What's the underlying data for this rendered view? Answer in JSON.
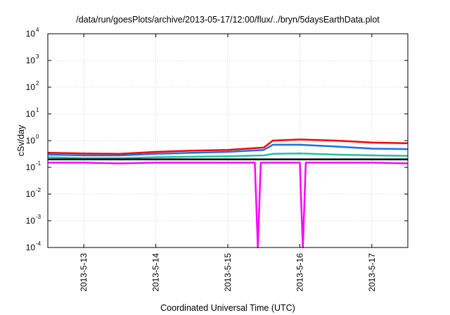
{
  "chart_data": {
    "type": "line",
    "title": "/data/run/goesPlots/archive/2013-05-17/12:00/flux/../bryn/5daysEarthData.plot",
    "xlabel": "Coordinated Universal Time (UTC)",
    "ylabel": "cSv/day",
    "yscale": "log",
    "ylim": [
      0.0001,
      10000
    ],
    "yticks": [
      {
        "value": 0.0001,
        "base": "10",
        "exp": "-4"
      },
      {
        "value": 0.001,
        "base": "10",
        "exp": "-3"
      },
      {
        "value": 0.01,
        "base": "10",
        "exp": "-2"
      },
      {
        "value": 0.1,
        "base": "10",
        "exp": "-1"
      },
      {
        "value": 1,
        "base": "10",
        "exp": "0"
      },
      {
        "value": 10,
        "base": "10",
        "exp": "1"
      },
      {
        "value": 100,
        "base": "10",
        "exp": "2"
      },
      {
        "value": 1000,
        "base": "10",
        "exp": "3"
      },
      {
        "value": 10000,
        "base": "10",
        "exp": "4"
      }
    ],
    "xlim": [
      "2013-05-12T12:00",
      "2013-05-17T12:00"
    ],
    "xticks": [
      {
        "value": "2013-05-13T00:00",
        "label": "2013-5-13"
      },
      {
        "value": "2013-05-14T00:00",
        "label": "2013-5-14"
      },
      {
        "value": "2013-05-15T00:00",
        "label": "2013-5-15"
      },
      {
        "value": "2013-05-16T00:00",
        "label": "2013-5-16"
      },
      {
        "value": "2013-05-17T00:00",
        "label": "2013-5-17"
      }
    ],
    "grid": true,
    "series": [
      {
        "color": "#ff0000",
        "points": [
          [
            "2013-05-12T12:00",
            0.35
          ],
          [
            "2013-05-13T00:00",
            0.33
          ],
          [
            "2013-05-13T12:00",
            0.32
          ],
          [
            "2013-05-14T00:00",
            0.38
          ],
          [
            "2013-05-14T12:00",
            0.42
          ],
          [
            "2013-05-15T00:00",
            0.45
          ],
          [
            "2013-05-15T12:00",
            0.55
          ],
          [
            "2013-05-15T15:00",
            1.0
          ],
          [
            "2013-05-16T00:00",
            1.1
          ],
          [
            "2013-05-16T12:00",
            1.0
          ],
          [
            "2013-05-17T00:00",
            0.85
          ],
          [
            "2013-05-17T12:00",
            0.8
          ]
        ]
      },
      {
        "color": "#1a6fe6",
        "points": [
          [
            "2013-05-12T12:00",
            0.3
          ],
          [
            "2013-05-13T00:00",
            0.28
          ],
          [
            "2013-05-13T12:00",
            0.28
          ],
          [
            "2013-05-14T00:00",
            0.32
          ],
          [
            "2013-05-14T12:00",
            0.35
          ],
          [
            "2013-05-15T00:00",
            0.38
          ],
          [
            "2013-05-15T12:00",
            0.45
          ],
          [
            "2013-05-15T15:00",
            0.7
          ],
          [
            "2013-05-16T00:00",
            0.7
          ],
          [
            "2013-05-16T12:00",
            0.6
          ],
          [
            "2013-05-17T00:00",
            0.5
          ],
          [
            "2013-05-17T12:00",
            0.48
          ]
        ]
      },
      {
        "color": "#20c0a0",
        "points": [
          [
            "2013-05-12T12:00",
            0.24
          ],
          [
            "2013-05-13T00:00",
            0.22
          ],
          [
            "2013-05-13T12:00",
            0.22
          ],
          [
            "2013-05-14T00:00",
            0.24
          ],
          [
            "2013-05-14T12:00",
            0.25
          ],
          [
            "2013-05-15T00:00",
            0.26
          ],
          [
            "2013-05-15T12:00",
            0.28
          ],
          [
            "2013-05-15T15:00",
            0.32
          ],
          [
            "2013-05-16T00:00",
            0.33
          ],
          [
            "2013-05-16T12:00",
            0.3
          ],
          [
            "2013-05-17T00:00",
            0.28
          ],
          [
            "2013-05-17T12:00",
            0.27
          ]
        ]
      },
      {
        "color": "#000000",
        "points": [
          [
            "2013-05-12T12:00",
            0.2
          ],
          [
            "2013-05-13T12:00",
            0.2
          ],
          [
            "2013-05-14T12:00",
            0.2
          ],
          [
            "2013-05-15T12:00",
            0.2
          ],
          [
            "2013-05-16T12:00",
            0.2
          ],
          [
            "2013-05-17T12:00",
            0.2
          ]
        ]
      },
      {
        "color": "#ff00ff",
        "points": [
          [
            "2013-05-12T12:00",
            0.15
          ],
          [
            "2013-05-13T00:00",
            0.15
          ],
          [
            "2013-05-13T12:00",
            0.14
          ],
          [
            "2013-05-14T00:00",
            0.15
          ],
          [
            "2013-05-14T12:00",
            0.15
          ],
          [
            "2013-05-15T00:00",
            0.15
          ],
          [
            "2013-05-15T09:00",
            0.15
          ],
          [
            "2013-05-15T10:00",
            0.0001
          ],
          [
            "2013-05-15T11:00",
            0.15
          ],
          [
            "2013-05-16T00:00",
            0.15
          ],
          [
            "2013-05-16T01:00",
            0.0001
          ],
          [
            "2013-05-16T02:00",
            0.15
          ],
          [
            "2013-05-16T12:00",
            0.15
          ],
          [
            "2013-05-17T00:00",
            0.15
          ],
          [
            "2013-05-17T12:00",
            0.14
          ]
        ]
      }
    ]
  }
}
